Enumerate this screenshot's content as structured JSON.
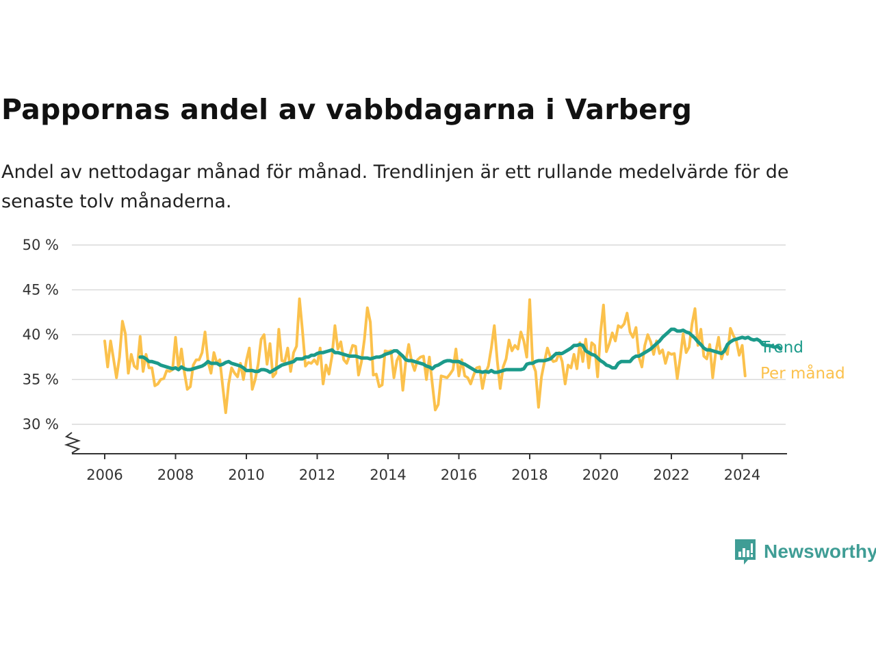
{
  "header": {
    "title": "Pappornas andel av vabbdagarna i Varberg",
    "subtitle": "Andel av nettodagar månad för månad. Trendlinjen är ett rullande medelvärde för de senaste tolv månaderna."
  },
  "brand": {
    "name": "Newsworthy",
    "icon": "newsworthy-logo-icon",
    "color": "#3f9d95"
  },
  "chart_data": {
    "type": "line",
    "title": "Pappornas andel av vabbdagarna i Varberg",
    "subtitle": "Andel av nettodagar månad för månad. Trendlinjen är ett rullande medelvärde för de senaste tolv månaderna.",
    "xlabel": "",
    "ylabel": "",
    "ylim": [
      27,
      50
    ],
    "xlim": [
      "2005-07",
      "2025-01"
    ],
    "y_axis_break": true,
    "grid": "horizontal",
    "x_ticks": [
      "2006",
      "2008",
      "2010",
      "2012",
      "2014",
      "2016",
      "2018",
      "2020",
      "2022",
      "2024"
    ],
    "y_ticks": [
      {
        "value": 30,
        "label": "30 %"
      },
      {
        "value": 35,
        "label": "35 %"
      },
      {
        "value": 40,
        "label": "40 %"
      },
      {
        "value": 45,
        "label": "45 %"
      },
      {
        "value": 50,
        "label": "50 %"
      }
    ],
    "series": [
      {
        "name": "Per månad",
        "color": "#fbc14c",
        "start": "2006-01",
        "values": [
          39.3,
          36.4,
          39.3,
          37.3,
          35.2,
          37.5,
          41.5,
          40.1,
          35.7,
          37.8,
          36.5,
          36.2,
          39.8,
          35.9,
          37.8,
          36.3,
          36.3,
          34.3,
          34.5,
          35.0,
          35.1,
          36.0,
          35.9,
          36.1,
          39.7,
          36.2,
          38.4,
          35.8,
          33.9,
          34.2,
          36.6,
          37.2,
          37.2,
          38.0,
          40.3,
          37.0,
          35.7,
          38.0,
          36.8,
          37.2,
          34.2,
          31.3,
          34.5,
          36.3,
          35.7,
          35.3,
          36.8,
          35.0,
          37.1,
          38.5,
          33.9,
          35.0,
          36.7,
          39.5,
          40.0,
          36.7,
          39.0,
          35.3,
          35.7,
          40.6,
          37.1,
          37.0,
          38.5,
          35.9,
          38.0,
          38.7,
          44.0,
          40.5,
          36.5,
          36.9,
          36.8,
          37.2,
          36.7,
          38.5,
          34.5,
          36.6,
          35.6,
          37.6,
          41.0,
          38.4,
          39.2,
          37.2,
          36.8,
          37.7,
          38.8,
          38.7,
          35.5,
          37.0,
          39.5,
          43.0,
          41.4,
          35.5,
          35.6,
          34.2,
          34.4,
          38.2,
          38.1,
          38.2,
          35.2,
          37.1,
          37.8,
          33.8,
          37.0,
          38.9,
          37.0,
          36.0,
          37.2,
          37.5,
          37.6,
          35.0,
          37.5,
          34.5,
          31.6,
          32.2,
          35.4,
          35.3,
          35.2,
          35.6,
          36.1,
          38.4,
          35.4,
          37.2,
          35.4,
          35.2,
          34.5,
          35.5,
          36.3,
          36.4,
          34.0,
          35.7,
          36.5,
          38.5,
          41.0,
          37.1,
          34.0,
          36.4,
          37.3,
          39.4,
          38.2,
          38.8,
          38.4,
          40.3,
          39.3,
          37.5,
          43.9,
          36.8,
          35.9,
          31.9,
          35.3,
          37.0,
          38.5,
          37.5,
          37.0,
          37.1,
          38.0,
          37.0,
          34.5,
          36.6,
          36.3,
          37.8,
          36.2,
          39.1,
          37.0,
          39.5,
          36.3,
          39.1,
          38.8,
          35.3,
          40.2,
          43.3,
          38.1,
          39.0,
          40.2,
          39.3,
          41.0,
          40.8,
          41.2,
          42.4,
          40.3,
          39.7,
          40.8,
          37.5,
          36.4,
          38.8,
          40.0,
          39.2,
          37.8,
          39.3,
          37.9,
          38.3,
          36.8,
          38.0,
          37.8,
          37.9,
          35.1,
          37.4,
          40.1,
          38.0,
          38.6,
          41.2,
          42.9,
          38.8,
          40.6,
          37.6,
          37.3,
          38.9,
          35.2,
          38.0,
          39.7,
          37.3,
          38.4,
          37.8,
          40.7,
          39.9,
          39.3,
          37.7,
          38.8,
          35.4
        ]
      },
      {
        "name": "Trend",
        "color": "#1b9a8a",
        "start": "2007-01",
        "values": [
          37.5,
          37.5,
          37.3,
          37.0,
          37.0,
          36.9,
          36.8,
          36.6,
          36.5,
          36.4,
          36.3,
          36.2,
          36.3,
          36.1,
          36.4,
          36.2,
          36.1,
          36.1,
          36.2,
          36.3,
          36.4,
          36.5,
          36.7,
          37.0,
          36.8,
          36.8,
          36.8,
          36.6,
          36.7,
          36.9,
          37.0,
          36.8,
          36.7,
          36.6,
          36.5,
          36.3,
          36.0,
          36.0,
          36.0,
          35.9,
          35.9,
          36.1,
          36.1,
          36.0,
          35.8,
          36.0,
          36.2,
          36.4,
          36.6,
          36.7,
          36.8,
          36.9,
          37.0,
          37.3,
          37.3,
          37.3,
          37.5,
          37.5,
          37.7,
          37.7,
          37.9,
          38.0,
          38.0,
          38.1,
          38.2,
          38.3,
          38.0,
          38.0,
          37.9,
          37.8,
          37.7,
          37.6,
          37.6,
          37.6,
          37.5,
          37.4,
          37.4,
          37.4,
          37.3,
          37.4,
          37.5,
          37.5,
          37.6,
          37.8,
          37.9,
          38.0,
          38.2,
          38.2,
          37.9,
          37.6,
          37.2,
          37.1,
          37.1,
          37.0,
          36.9,
          36.8,
          36.7,
          36.5,
          36.4,
          36.2,
          36.5,
          36.6,
          36.8,
          37.0,
          37.1,
          37.1,
          37.0,
          37.0,
          37.0,
          36.8,
          36.7,
          36.5,
          36.3,
          36.1,
          35.9,
          35.9,
          35.8,
          35.9,
          35.8,
          36.0,
          35.8,
          35.8,
          35.9,
          36.0,
          36.1,
          36.1,
          36.1,
          36.1,
          36.1,
          36.1,
          36.2,
          36.7,
          36.8,
          36.8,
          37.0,
          37.1,
          37.1,
          37.1,
          37.2,
          37.3,
          37.6,
          37.9,
          37.9,
          37.9,
          38.1,
          38.3,
          38.5,
          38.8,
          38.8,
          38.9,
          38.8,
          38.2,
          38.0,
          37.8,
          37.7,
          37.4,
          37.1,
          36.9,
          36.6,
          36.5,
          36.3,
          36.3,
          36.8,
          37.0,
          37.0,
          37.0,
          37.0,
          37.4,
          37.6,
          37.6,
          37.8,
          38.0,
          38.2,
          38.4,
          38.7,
          39.0,
          39.3,
          39.7,
          40.0,
          40.3,
          40.6,
          40.6,
          40.4,
          40.4,
          40.5,
          40.3,
          40.2,
          39.9,
          39.6,
          39.2,
          38.9,
          38.5,
          38.3,
          38.3,
          38.2,
          38.1,
          38.0,
          37.9,
          38.2,
          38.9,
          39.2,
          39.4,
          39.5,
          39.6,
          39.7,
          39.6,
          39.7,
          39.5,
          39.4,
          39.5,
          39.3,
          38.9,
          38.8,
          38.8,
          38.7,
          38.6,
          38.7,
          38.4
        ]
      }
    ]
  }
}
